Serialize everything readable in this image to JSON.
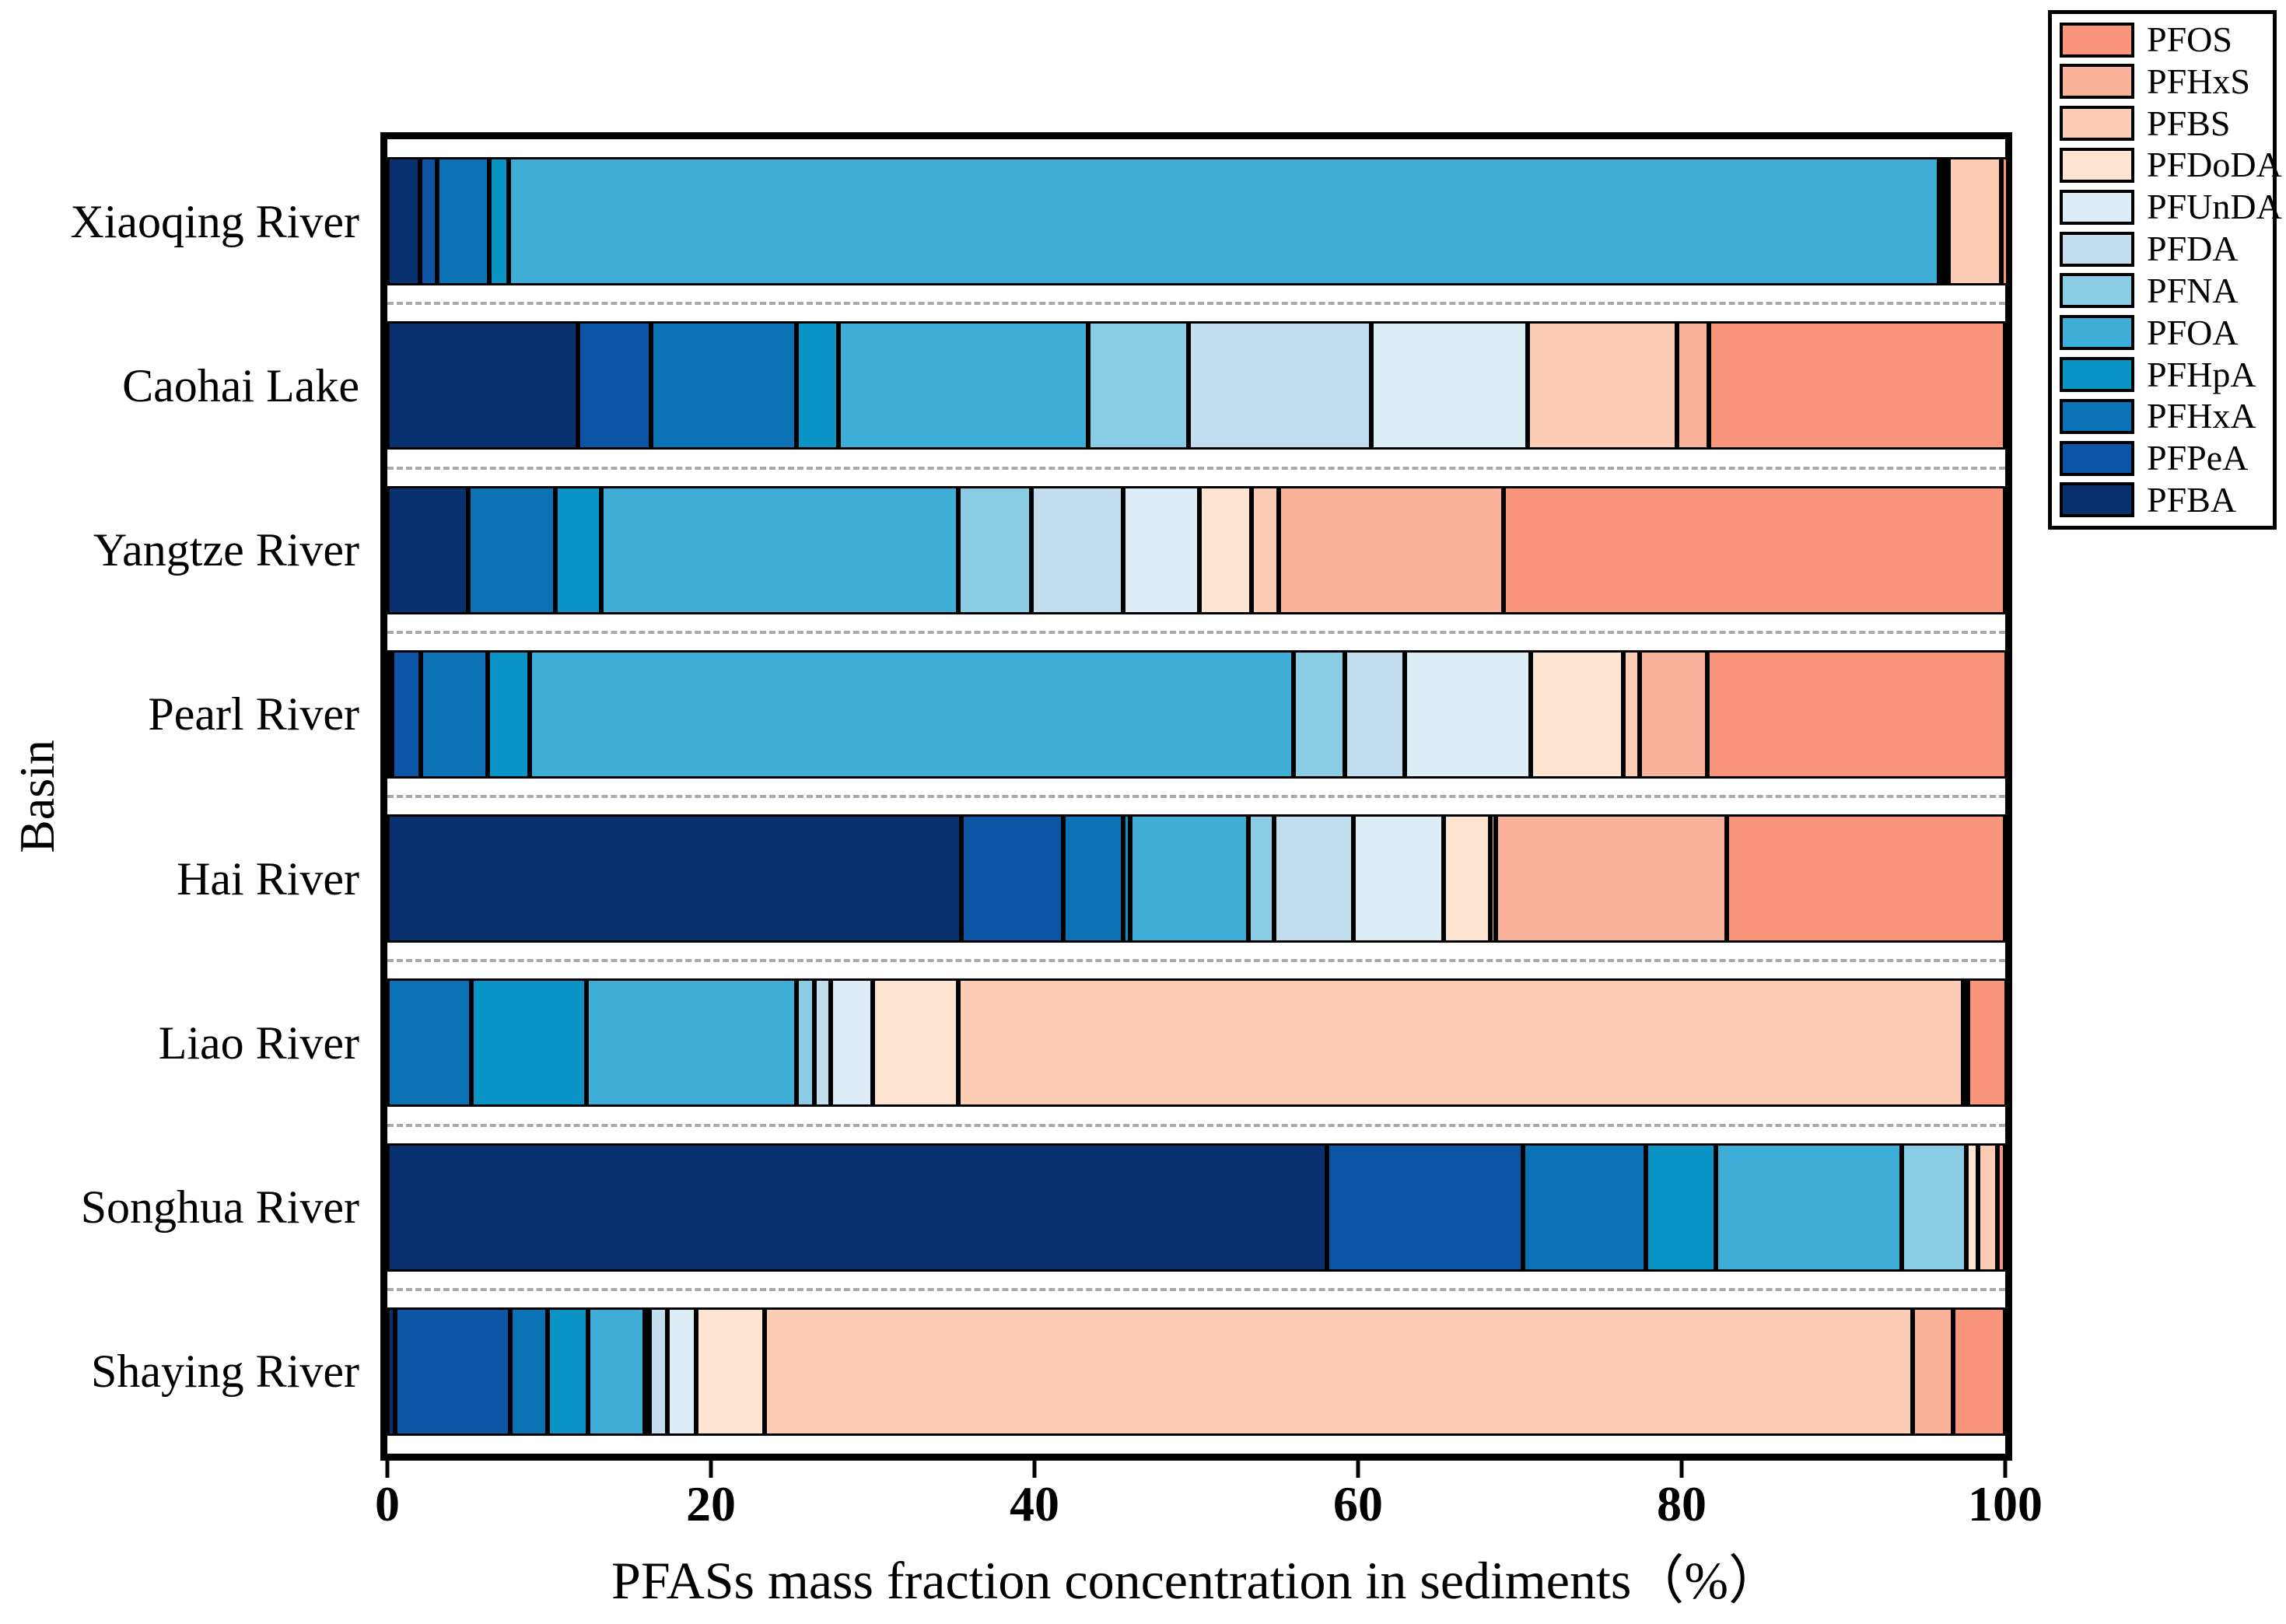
{
  "chart_data": {
    "type": "bar",
    "subtype": "horizontal-stacked-100pct",
    "title": "",
    "xlabel": "PFASs mass fraction concentration in sediments（%）",
    "ylabel": "Basin",
    "xlim": [
      0,
      100
    ],
    "x_ticks": [
      0,
      20,
      40,
      60,
      80,
      100
    ],
    "grid": "dashed-row-separators",
    "legend_position": "top-right-outside",
    "categories": [
      "Xiaoqing River",
      "Caohai Lake",
      "Yangtze River",
      "Pearl River",
      "Hai River",
      "Liao River",
      "Songhua River",
      "Shaying River"
    ],
    "stack_order": [
      "PFBA",
      "PFPeA",
      "PFHxA",
      "PFHpA",
      "PFOA",
      "PFNA",
      "PFDA",
      "PFUnDA",
      "PFDoDA",
      "PFBS",
      "PFHxS",
      "PFOS"
    ],
    "legend_order": [
      "PFOS",
      "PFHxS",
      "PFBS",
      "PFDoDA",
      "PFUnDA",
      "PFDA",
      "PFNA",
      "PFOA",
      "PFHpA",
      "PFHxA",
      "PFPeA",
      "PFBA"
    ],
    "colors": {
      "PFBA": "#08316D",
      "PFPeA": "#0C55A4",
      "PFHxA": "#0B72B5",
      "PFHpA": "#0A94C6",
      "PFOA": "#3EAED9",
      "PFNA": "#8ACCE4",
      "PFDA": "#C2DDED",
      "PFUnDA": "#DCEDF5",
      "PFDoDA": "#FDE5D2",
      "PFBS": "#FCCDB4",
      "PFHxS": "#FBB29A",
      "PFOS": "#F9957A"
    },
    "series": [
      {
        "name": "PFBA",
        "values": [
          2.0,
          11.8,
          5.0,
          0.2,
          35.5,
          0,
          58.1,
          0.5
        ]
      },
      {
        "name": "PFPeA",
        "values": [
          1.1,
          4.5,
          0,
          1.8,
          6.3,
          0,
          12.1,
          7.1
        ]
      },
      {
        "name": "PFHxA",
        "values": [
          3.2,
          9.0,
          5.4,
          4.1,
          3.7,
          5.2,
          7.6,
          2.3
        ]
      },
      {
        "name": "PFHpA",
        "values": [
          1.2,
          2.6,
          2.8,
          2.6,
          0.4,
          7.1,
          4.3,
          2.5
        ]
      },
      {
        "name": "PFOA",
        "values": [
          88.4,
          15.4,
          22.1,
          47.2,
          7.3,
          13.0,
          11.5,
          3.5
        ]
      },
      {
        "name": "PFNA",
        "values": [
          0,
          6.2,
          4.5,
          3.2,
          1.6,
          1.1,
          4.0,
          0.3
        ]
      },
      {
        "name": "PFDA",
        "values": [
          0,
          11.3,
          5.7,
          3.7,
          4.9,
          1.0,
          0,
          1.1
        ]
      },
      {
        "name": "PFUnDA",
        "values": [
          0.2,
          9.7,
          4.7,
          7.8,
          5.6,
          2.6,
          0,
          1.8
        ]
      },
      {
        "name": "PFDoDA",
        "values": [
          0.2,
          0,
          3.2,
          5.7,
          2.9,
          5.3,
          0.7,
          4.2
        ]
      },
      {
        "name": "PFBS",
        "values": [
          3.3,
          9.2,
          1.7,
          1.0,
          0.3,
          62.1,
          1.2,
          71.0
        ]
      },
      {
        "name": "PFHxS",
        "values": [
          0,
          2.0,
          13.9,
          4.2,
          14.3,
          0.2,
          0,
          2.5
        ]
      },
      {
        "name": "PFOS",
        "values": [
          0.4,
          18.3,
          31.0,
          18.5,
          17.2,
          2.4,
          0.5,
          3.2
        ]
      }
    ]
  },
  "layout_hints": {
    "frame_color": "#000000",
    "separator_color": "#a9a9a9",
    "background": "#ffffff"
  }
}
